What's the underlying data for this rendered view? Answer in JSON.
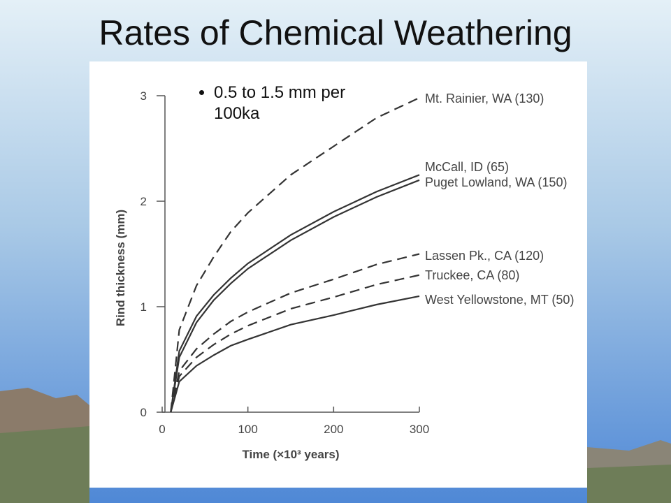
{
  "chart_data": {
    "type": "line",
    "title": "Rates of Chemical Weathering",
    "annotation": "0.5 to 1.5 mm per 100ka",
    "xlabel": "Time (×10³ years)",
    "ylabel": "Rind thickness (mm)",
    "x": [
      10,
      20,
      40,
      60,
      80,
      100,
      150,
      200,
      250,
      300
    ],
    "xlim": [
      0,
      300
    ],
    "xticks": [
      0,
      100,
      200,
      300
    ],
    "ylim": [
      0,
      3
    ],
    "yticks": [
      0,
      1,
      2,
      3
    ],
    "series": [
      {
        "name": "Mt. Rainier, WA (130)",
        "color": "#333333",
        "dashed": true,
        "values": [
          0,
          0.78,
          1.2,
          1.47,
          1.71,
          1.89,
          2.25,
          2.52,
          2.79,
          2.98
        ]
      },
      {
        "name": "McCall, ID (65)",
        "color": "#333333",
        "dashed": false,
        "values": [
          0,
          0.58,
          0.91,
          1.11,
          1.27,
          1.41,
          1.68,
          1.9,
          2.09,
          2.25
        ]
      },
      {
        "name": "Puget Lowland, WA (150)",
        "color": "#333333",
        "dashed": false,
        "values": [
          0,
          0.52,
          0.85,
          1.06,
          1.22,
          1.36,
          1.63,
          1.85,
          2.04,
          2.2
        ]
      },
      {
        "name": "Lassen Pk., CA (120)",
        "color": "#333333",
        "dashed": true,
        "values": [
          0,
          0.39,
          0.6,
          0.74,
          0.86,
          0.95,
          1.13,
          1.26,
          1.4,
          1.5
        ]
      },
      {
        "name": "Truckee, CA (80)",
        "color": "#333333",
        "dashed": true,
        "values": [
          0,
          0.34,
          0.52,
          0.64,
          0.74,
          0.82,
          0.98,
          1.09,
          1.21,
          1.3
        ]
      },
      {
        "name": "West Yellowstone, MT (50)",
        "color": "#333333",
        "dashed": false,
        "values": [
          0,
          0.29,
          0.44,
          0.54,
          0.63,
          0.69,
          0.83,
          0.92,
          1.02,
          1.1
        ]
      }
    ]
  }
}
